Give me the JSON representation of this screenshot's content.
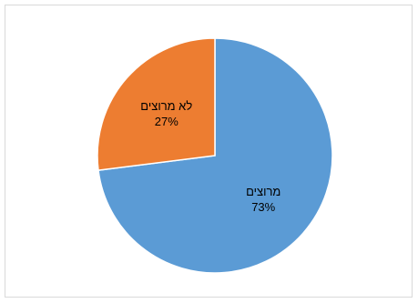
{
  "chart_data": {
    "type": "pie",
    "title": "",
    "slices": [
      {
        "label": "מרוצים",
        "value": 73,
        "value_label": "73%",
        "color": "#5b9bd5"
      },
      {
        "label": "לא מרוצים",
        "value": 27,
        "value_label": "27%",
        "color": "#ed7d31"
      }
    ],
    "start": "12 o'clock",
    "direction": "clockwise",
    "legend": "none",
    "border_color": "#d9d9d9"
  }
}
